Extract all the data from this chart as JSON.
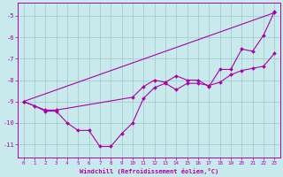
{
  "xlabel": "Windchill (Refroidissement éolien,°C)",
  "bg_color": "#c8eaec",
  "grid_color": "#a8ccce",
  "line_color": "#aa00aa",
  "xlim": [
    -0.5,
    23.5
  ],
  "ylim": [
    -11.6,
    -4.4
  ],
  "yticks": [
    -11,
    -10,
    -9,
    -8,
    -7,
    -6,
    -5
  ],
  "xticks": [
    0,
    1,
    2,
    3,
    4,
    5,
    6,
    7,
    8,
    9,
    10,
    11,
    12,
    13,
    14,
    15,
    16,
    17,
    18,
    19,
    20,
    21,
    22,
    23
  ],
  "lines": [
    {
      "x": [
        0,
        2,
        3,
        10,
        11,
        12,
        13,
        14,
        15,
        16,
        17,
        18,
        19,
        20,
        21,
        22,
        23
      ],
      "y": [
        -9.0,
        -9.4,
        -9.4,
        -8.8,
        -8.3,
        -8.0,
        -8.1,
        -7.8,
        -8.0,
        -8.0,
        -8.3,
        -7.5,
        -7.5,
        -6.55,
        -6.65,
        -5.9,
        -4.8
      ]
    },
    {
      "x": [
        0,
        1,
        2,
        3,
        4,
        5,
        6,
        7,
        8,
        9,
        10,
        11,
        12,
        13,
        14,
        15,
        16,
        17,
        18,
        19,
        20,
        21,
        22,
        23
      ],
      "y": [
        -9.0,
        -9.2,
        -9.45,
        -9.45,
        -10.0,
        -10.35,
        -10.35,
        -11.1,
        -11.1,
        -10.5,
        -10.0,
        -8.85,
        -8.35,
        -8.15,
        -8.45,
        -8.15,
        -8.15,
        -8.25,
        -8.1,
        -7.75,
        -7.55,
        -7.45,
        -7.35,
        -6.75
      ]
    },
    {
      "x": [
        0,
        23
      ],
      "y": [
        -9.0,
        -4.85
      ]
    }
  ]
}
